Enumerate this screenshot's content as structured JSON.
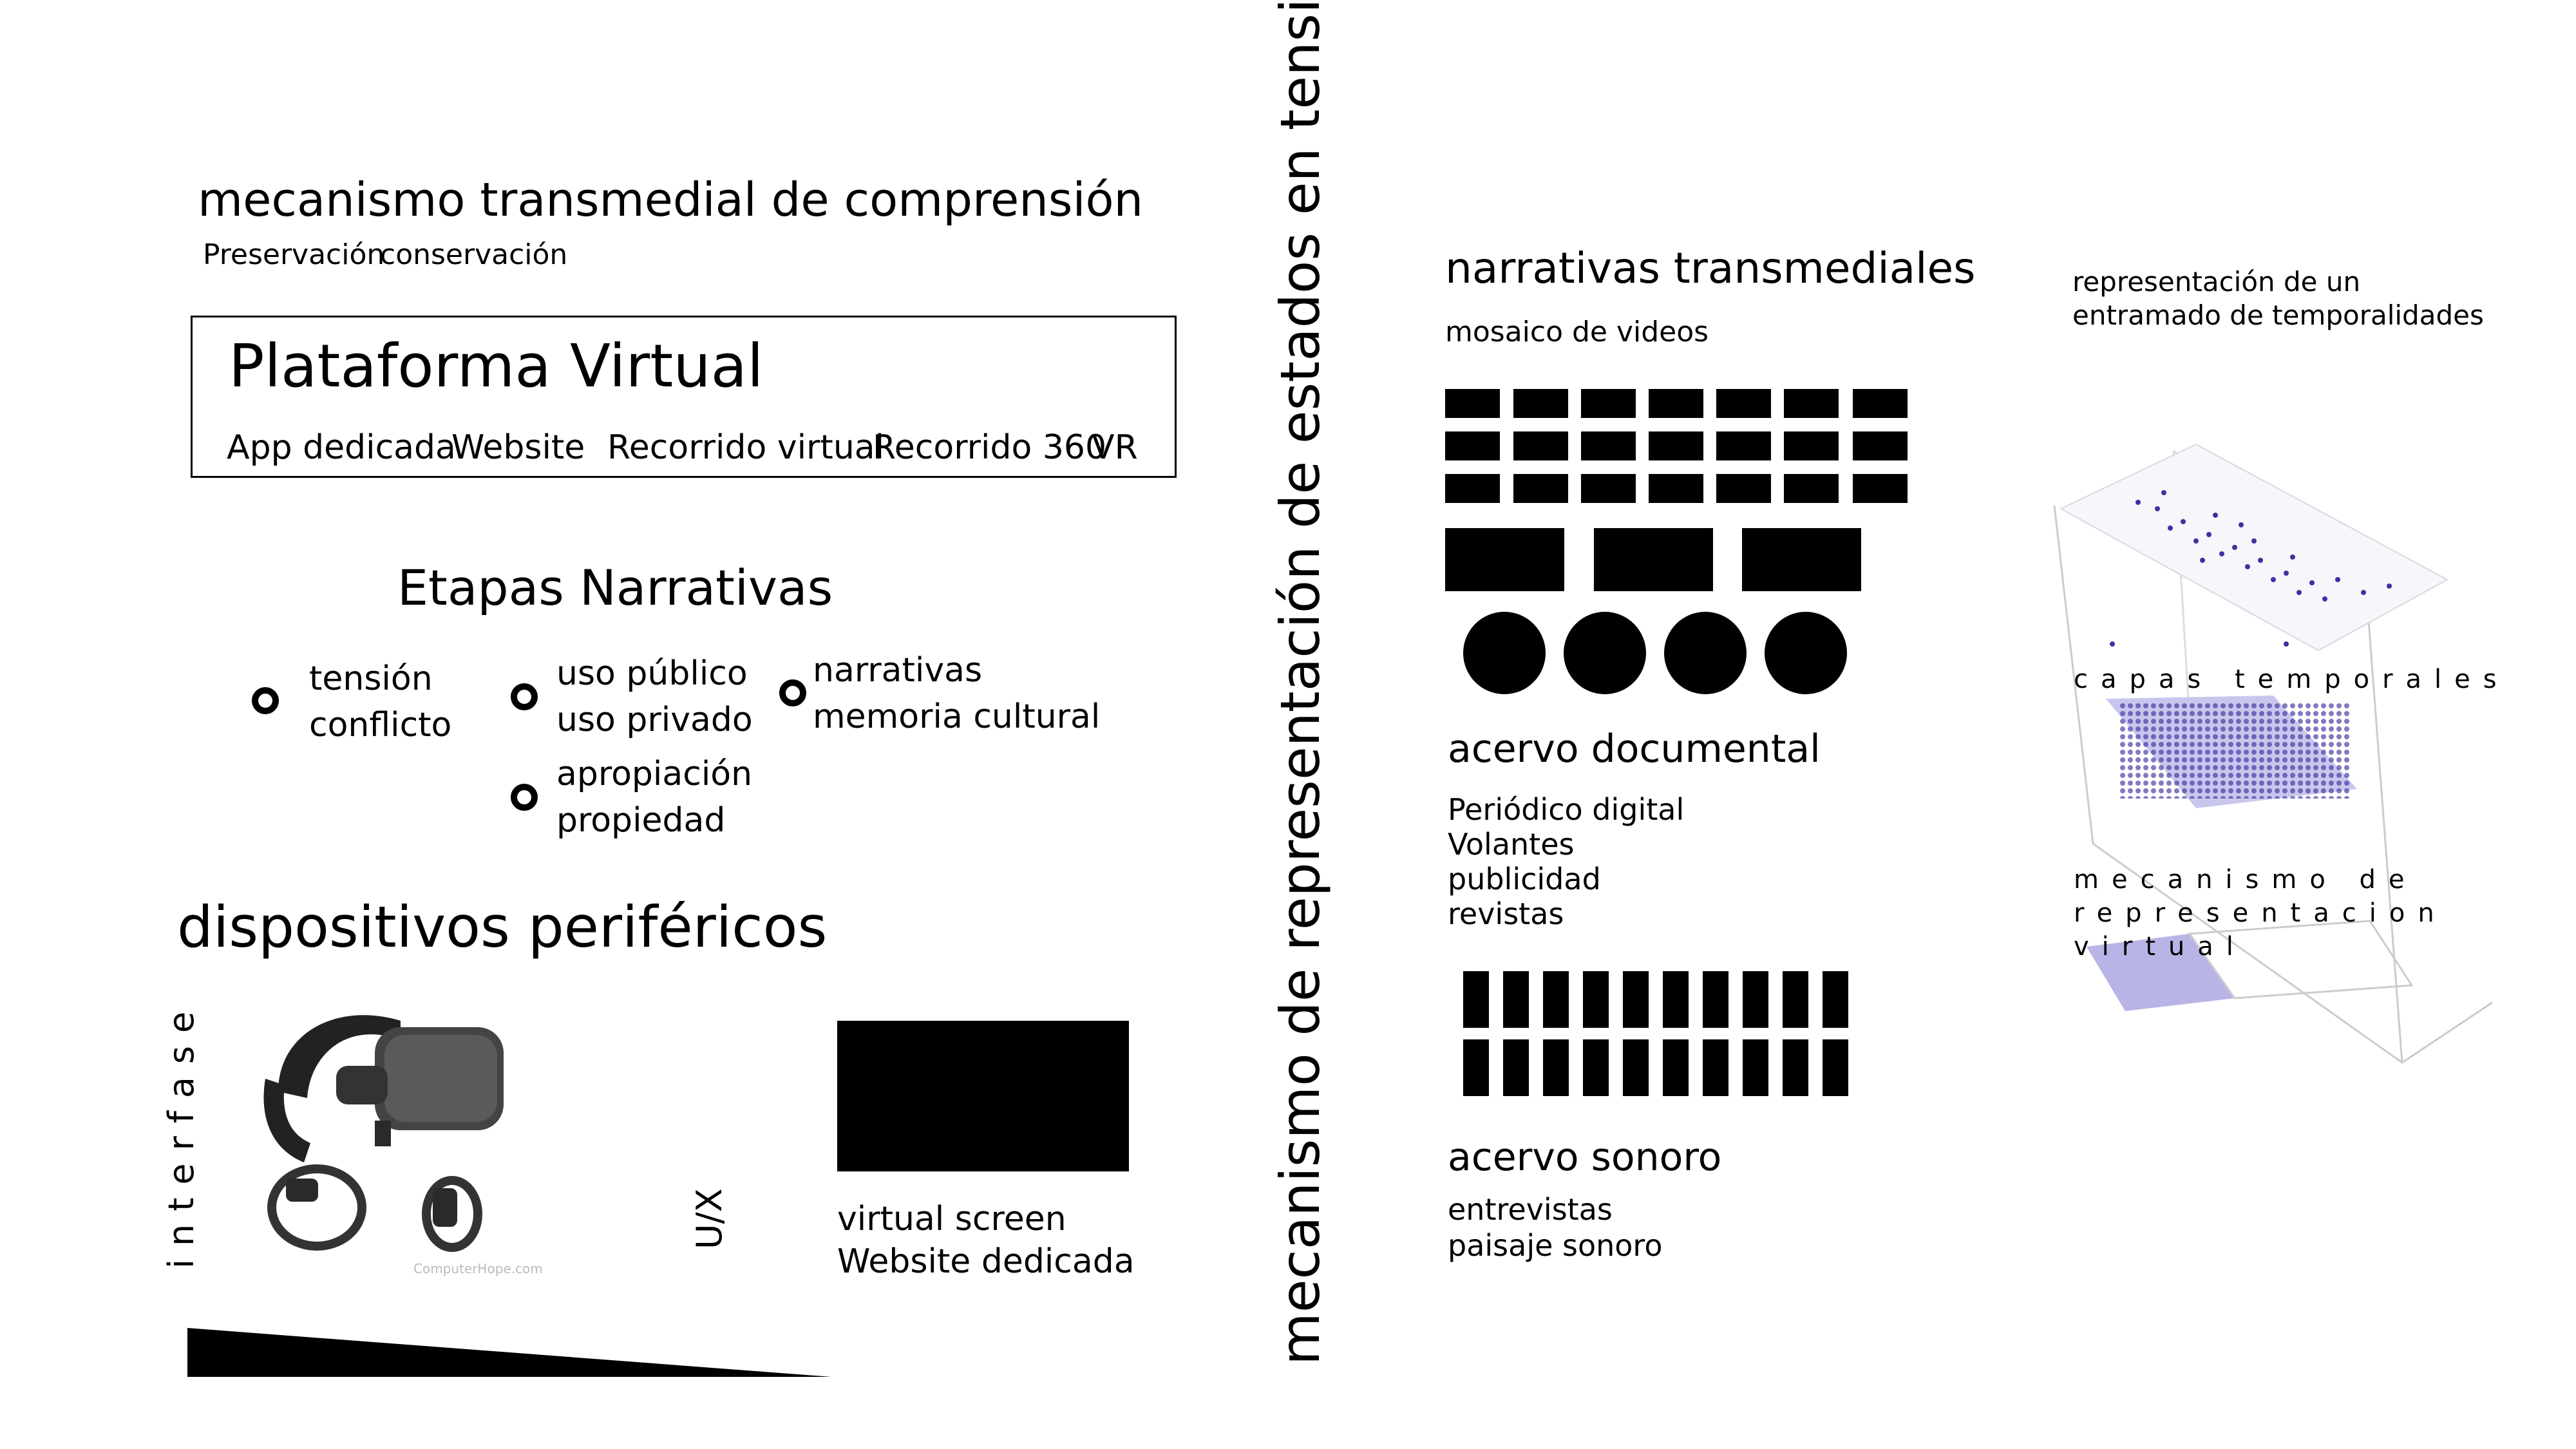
{
  "left": {
    "title": "mecanismo transmedial  de comprensión",
    "subtitle_1": "Preservación",
    "subtitle_2": "conservación",
    "platform": {
      "title": "Plataforma Virtual",
      "items": [
        "App dedicada",
        "Website",
        "Recorrido virtual",
        "Recorrido 360",
        "VR"
      ]
    },
    "stages": {
      "title": "Etapas Narrativas",
      "items": [
        {
          "line1": "tensión",
          "line2": "conflicto"
        },
        {
          "line1": "uso público",
          "line2": "uso privado"
        },
        {
          "line1": "narrativas",
          "line2": "memoria cultural"
        },
        {
          "line1": "apropiación",
          "line2": "propiedad"
        }
      ]
    },
    "devices": {
      "title": "dispositivos periféricos",
      "interface_label": "interfase",
      "ux_label": "U/X",
      "vr_watermark": "ComputerHope.com",
      "screen_line1": "virtual screen",
      "screen_line2": "Website dedicada"
    }
  },
  "center": {
    "vertical_title": "mecanismo de representación de estados en tensión"
  },
  "right": {
    "narratives": {
      "title": "narrativas transmediales",
      "subtitle": "mosaico de videos"
    },
    "documents": {
      "title": "acervo documental",
      "items": [
        "Periódico digital",
        "Volantes",
        "publicidad",
        "revistas"
      ]
    },
    "sound": {
      "title": "acervo sonoro",
      "items": [
        "entrevistas",
        "paisaje sonoro"
      ]
    },
    "temporal": {
      "line1": "representación de un",
      "line2": "entramado de temporalidades",
      "layers_label": "capas temporales",
      "mech_line1": "mecanismo de",
      "mech_line2": "representacion",
      "mech_line3": "virtual"
    }
  },
  "colors": {
    "dots": "#3b32a0",
    "layer": "#b8b4e6"
  },
  "icons": [
    "vr-headset-icon",
    "vr-controller-icon",
    "circle-marker-icon"
  ]
}
